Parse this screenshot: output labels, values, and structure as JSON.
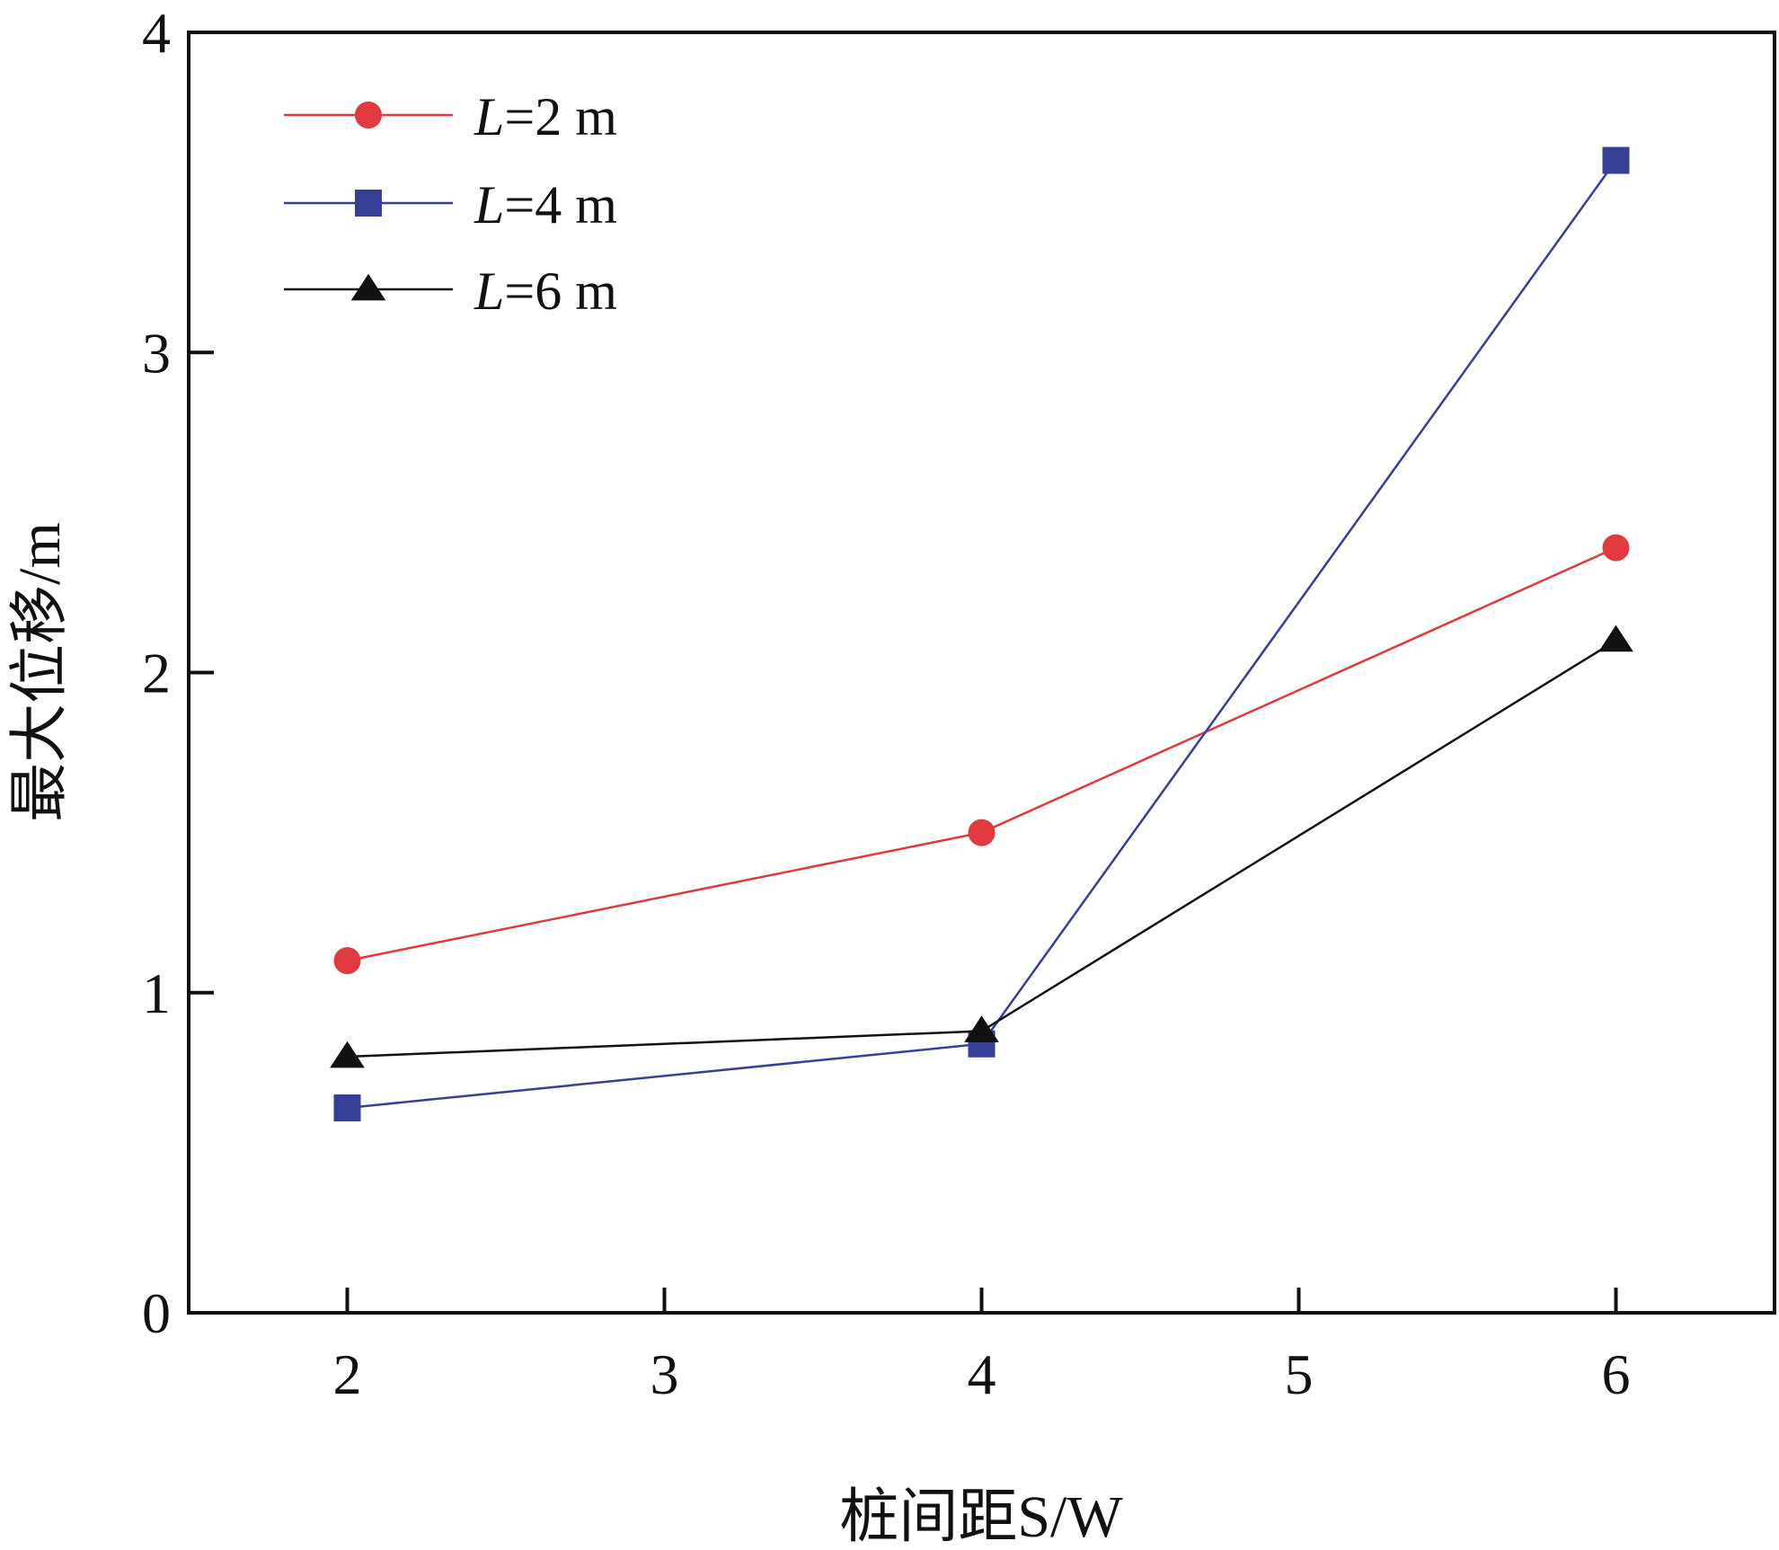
{
  "chart_data": {
    "type": "line",
    "title": "",
    "xlabel": "桩间距S/W",
    "ylabel": "最大位移/m",
    "xlim": [
      1.5,
      6.5
    ],
    "ylim": [
      0,
      4
    ],
    "xticks": [
      "2",
      "3",
      "4",
      "5",
      "6"
    ],
    "yticks": [
      "0",
      "1",
      "2",
      "3",
      "4"
    ],
    "grid": false,
    "legend_position": "top-left",
    "x": [
      2,
      4,
      6
    ],
    "series": [
      {
        "name": "L=2 m",
        "name_var": "L",
        "name_rest": "=2 m",
        "color": "#e0393e",
        "marker": "circle",
        "values": [
          1.1,
          1.5,
          2.39
        ]
      },
      {
        "name": "L=4 m",
        "name_var": "L",
        "name_rest": "=4 m",
        "color": "#343f95",
        "marker": "square",
        "values": [
          0.64,
          0.84,
          3.6
        ]
      },
      {
        "name": "L=6 m",
        "name_var": "L",
        "name_rest": "=6 m",
        "color": "#111111",
        "marker": "triangle",
        "values": [
          0.8,
          0.88,
          2.1
        ]
      }
    ]
  }
}
